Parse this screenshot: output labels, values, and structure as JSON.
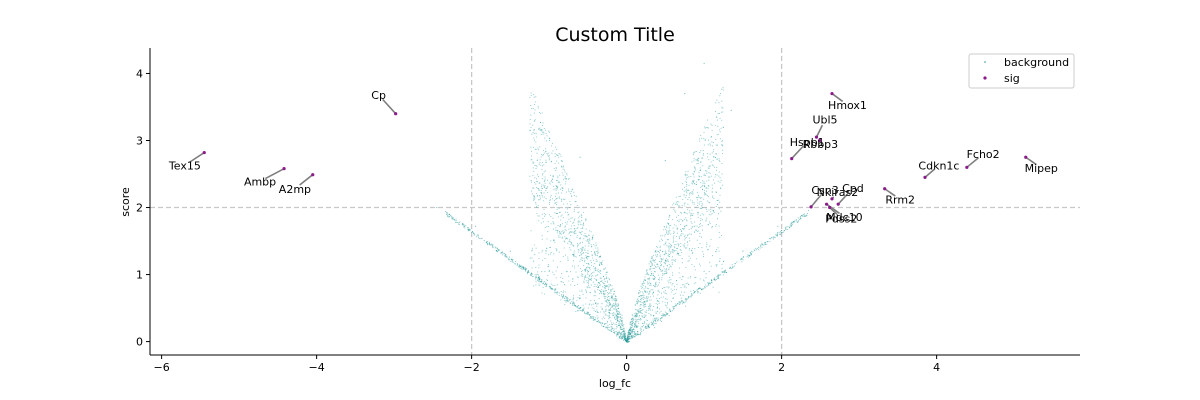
{
  "chart_data": {
    "type": "scatter",
    "title": "Custom Title",
    "xlabel": "log_fc",
    "ylabel": "score",
    "xlim": [
      -6.15,
      5.85
    ],
    "ylim": [
      -0.2,
      4.38
    ],
    "xticks": [
      -6,
      -4,
      -2,
      0,
      2,
      4
    ],
    "yticks": [
      0,
      1,
      2,
      3,
      4
    ],
    "thresholds": {
      "x": [
        -2,
        2
      ],
      "y": 2
    },
    "legend": {
      "placement": "top-right",
      "entries": [
        "background",
        "sig"
      ]
    },
    "colors": {
      "background": "#2a9a9a",
      "sig": "#8b1a8b",
      "threshold": "#c8c8c8",
      "leader": "#7f7f7f"
    },
    "series": [
      {
        "name": "background",
        "description_points": "dense V-shaped cloud of points centered at log_fc 0, score 0, widening upward; points lie within |log_fc| < 2 except a thin tail",
        "sample_points": [
          [
            -1.95,
            1.72
          ],
          [
            -1.5,
            1.35
          ],
          [
            -1.2,
            1.2
          ],
          [
            -1.0,
            1.05
          ],
          [
            -0.8,
            0.85
          ],
          [
            -0.6,
            0.65
          ],
          [
            -0.4,
            0.45
          ],
          [
            -0.2,
            0.22
          ],
          [
            0.2,
            0.22
          ],
          [
            0.4,
            0.45
          ],
          [
            0.6,
            0.65
          ],
          [
            0.8,
            0.85
          ],
          [
            1.0,
            1.05
          ],
          [
            1.2,
            1.2
          ],
          [
            1.5,
            1.35
          ],
          [
            1.95,
            1.72
          ],
          [
            2.3,
            1.88
          ],
          [
            1.0,
            4.15
          ],
          [
            0.75,
            3.7
          ],
          [
            1.35,
            3.45
          ],
          [
            -0.6,
            2.75
          ],
          [
            0.5,
            2.7
          ],
          [
            -2.45,
            2.0
          ]
        ]
      },
      {
        "name": "sig",
        "points": [
          {
            "gene": "Tex15",
            "x": -5.45,
            "y": 2.82
          },
          {
            "gene": "Ambp",
            "x": -4.42,
            "y": 2.58
          },
          {
            "gene": "A2mp",
            "x": -4.05,
            "y": 2.49
          },
          {
            "gene": "Cp",
            "x": -2.98,
            "y": 3.4
          },
          {
            "gene": "Hmox1",
            "x": 2.65,
            "y": 3.7
          },
          {
            "gene": "Ubl5",
            "x": 2.45,
            "y": 3.05
          },
          {
            "gene": "Hspb1",
            "x": 2.13,
            "y": 2.73
          },
          {
            "gene": "Rbbp3",
            "x": 2.49,
            "y": 3.0
          },
          {
            "gene": "Csn3",
            "x": 2.38,
            "y": 2.01
          },
          {
            "gene": "Cpd",
            "x": 2.73,
            "y": 2.05
          },
          {
            "gene": "Nkiras2",
            "x": 2.65,
            "y": 2.13
          },
          {
            "gene": "Mdc10",
            "x": 2.58,
            "y": 2.05
          },
          {
            "gene": "Pdss2",
            "x": 2.62,
            "y": 2.0
          },
          {
            "gene": "Rrm2",
            "x": 3.33,
            "y": 2.28
          },
          {
            "gene": "Cdkn1c",
            "x": 3.85,
            "y": 2.45
          },
          {
            "gene": "Fcho2",
            "x": 4.39,
            "y": 2.6
          },
          {
            "gene": "Mipep",
            "x": 5.15,
            "y": 2.75
          }
        ]
      }
    ],
    "annotations": [
      {
        "text": "Tex15",
        "x": -5.7,
        "y": 2.63
      },
      {
        "text": "Ambp",
        "x": -4.73,
        "y": 2.39
      },
      {
        "text": "A2mp",
        "x": -4.28,
        "y": 2.28
      },
      {
        "text": "Cp",
        "x": -3.2,
        "y": 3.68
      },
      {
        "text": "Hmox1",
        "x": 2.85,
        "y": 3.53
      },
      {
        "text": "Ubl5",
        "x": 2.56,
        "y": 3.31
      },
      {
        "text": "Hspb1",
        "x": 2.33,
        "y": 2.98
      },
      {
        "text": "Rbbp3",
        "x": 2.5,
        "y": 2.95
      },
      {
        "text": "Csn3",
        "x": 2.56,
        "y": 2.26
      },
      {
        "text": "Cpd",
        "x": 2.92,
        "y": 2.29
      },
      {
        "text": "Nkiras2",
        "x": 2.72,
        "y": 2.23
      },
      {
        "text": "Mdc10",
        "x": 2.81,
        "y": 1.86
      },
      {
        "text": "Pdss2",
        "x": 2.77,
        "y": 1.84
      },
      {
        "text": "Rrm2",
        "x": 3.53,
        "y": 2.12
      },
      {
        "text": "Cdkn1c",
        "x": 4.03,
        "y": 2.63
      },
      {
        "text": "Fcho2",
        "x": 4.6,
        "y": 2.8
      },
      {
        "text": "Mipep",
        "x": 5.35,
        "y": 2.59
      }
    ]
  }
}
